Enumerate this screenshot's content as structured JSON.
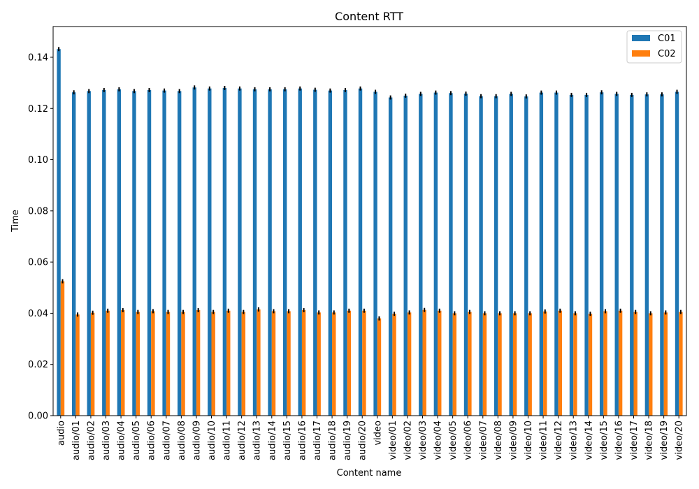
{
  "chart_data": {
    "type": "bar",
    "title": "Content RTT",
    "xlabel": "Content name",
    "ylabel": "Time",
    "ylim": [
      0,
      0.152
    ],
    "yticks": [
      "0.00",
      "0.02",
      "0.04",
      "0.06",
      "0.08",
      "0.10",
      "0.12",
      "0.14"
    ],
    "grid": false,
    "legend_position": "top-right",
    "error_bars": true,
    "categories": [
      "audio",
      "audio/01",
      "audio/02",
      "audio/03",
      "audio/04",
      "audio/05",
      "audio/06",
      "audio/07",
      "audio/08",
      "audio/09",
      "audio/10",
      "audio/11",
      "audio/12",
      "audio/13",
      "audio/14",
      "audio/15",
      "audio/16",
      "audio/17",
      "audio/18",
      "audio/19",
      "audio/20",
      "video",
      "video/01",
      "video/02",
      "video/03",
      "video/04",
      "video/05",
      "video/06",
      "video/07",
      "video/08",
      "video/09",
      "video/10",
      "video/11",
      "video/12",
      "video/13",
      "video/14",
      "video/15",
      "video/16",
      "video/17",
      "video/18",
      "video/19",
      "video/20"
    ],
    "series": [
      {
        "name": "C01",
        "color": "#1f77b4",
        "values": [
          0.1432,
          0.1263,
          0.1268,
          0.1272,
          0.1275,
          0.1268,
          0.1272,
          0.127,
          0.1268,
          0.1282,
          0.1278,
          0.128,
          0.1278,
          0.1275,
          0.1275,
          0.1275,
          0.1278,
          0.1273,
          0.127,
          0.1272,
          0.1278,
          0.1265,
          0.1243,
          0.125,
          0.1257,
          0.1262,
          0.126,
          0.1258,
          0.1248,
          0.1248,
          0.1257,
          0.1247,
          0.1262,
          0.1262,
          0.1253,
          0.1253,
          0.1263,
          0.1257,
          0.1253,
          0.1255,
          0.1255,
          0.1265
        ],
        "errors": [
          0.0008,
          0.0008,
          0.0008,
          0.0008,
          0.0008,
          0.0008,
          0.0008,
          0.0008,
          0.0008,
          0.0008,
          0.0008,
          0.0008,
          0.0008,
          0.0008,
          0.0008,
          0.0008,
          0.0008,
          0.0008,
          0.0008,
          0.0008,
          0.0008,
          0.0008,
          0.0008,
          0.0008,
          0.0008,
          0.0008,
          0.0008,
          0.0008,
          0.0008,
          0.0008,
          0.0008,
          0.0008,
          0.0008,
          0.0008,
          0.0008,
          0.0008,
          0.0008,
          0.0008,
          0.0008,
          0.0008,
          0.0008,
          0.0008
        ]
      },
      {
        "name": "C02",
        "color": "#ff7f0e",
        "values": [
          0.0525,
          0.0395,
          0.0402,
          0.041,
          0.0412,
          0.0405,
          0.0408,
          0.0405,
          0.0405,
          0.0412,
          0.0405,
          0.041,
          0.0405,
          0.0415,
          0.0408,
          0.0408,
          0.0412,
          0.0403,
          0.0403,
          0.041,
          0.041,
          0.038,
          0.0398,
          0.0403,
          0.0413,
          0.041,
          0.04,
          0.0405,
          0.04,
          0.04,
          0.04,
          0.04,
          0.0407,
          0.041,
          0.04,
          0.0398,
          0.0408,
          0.041,
          0.0405,
          0.04,
          0.0403,
          0.0405
        ],
        "errors": [
          0.0008,
          0.0008,
          0.0008,
          0.0008,
          0.0008,
          0.0008,
          0.0008,
          0.0008,
          0.0008,
          0.0008,
          0.0008,
          0.0008,
          0.0008,
          0.0008,
          0.0008,
          0.0008,
          0.0008,
          0.0008,
          0.0008,
          0.0008,
          0.0008,
          0.0008,
          0.0008,
          0.0008,
          0.0008,
          0.0008,
          0.0008,
          0.0008,
          0.0008,
          0.0008,
          0.0008,
          0.0008,
          0.0008,
          0.0008,
          0.0008,
          0.0008,
          0.0008,
          0.0008,
          0.0008,
          0.0008,
          0.0008,
          0.0008
        ]
      }
    ]
  }
}
